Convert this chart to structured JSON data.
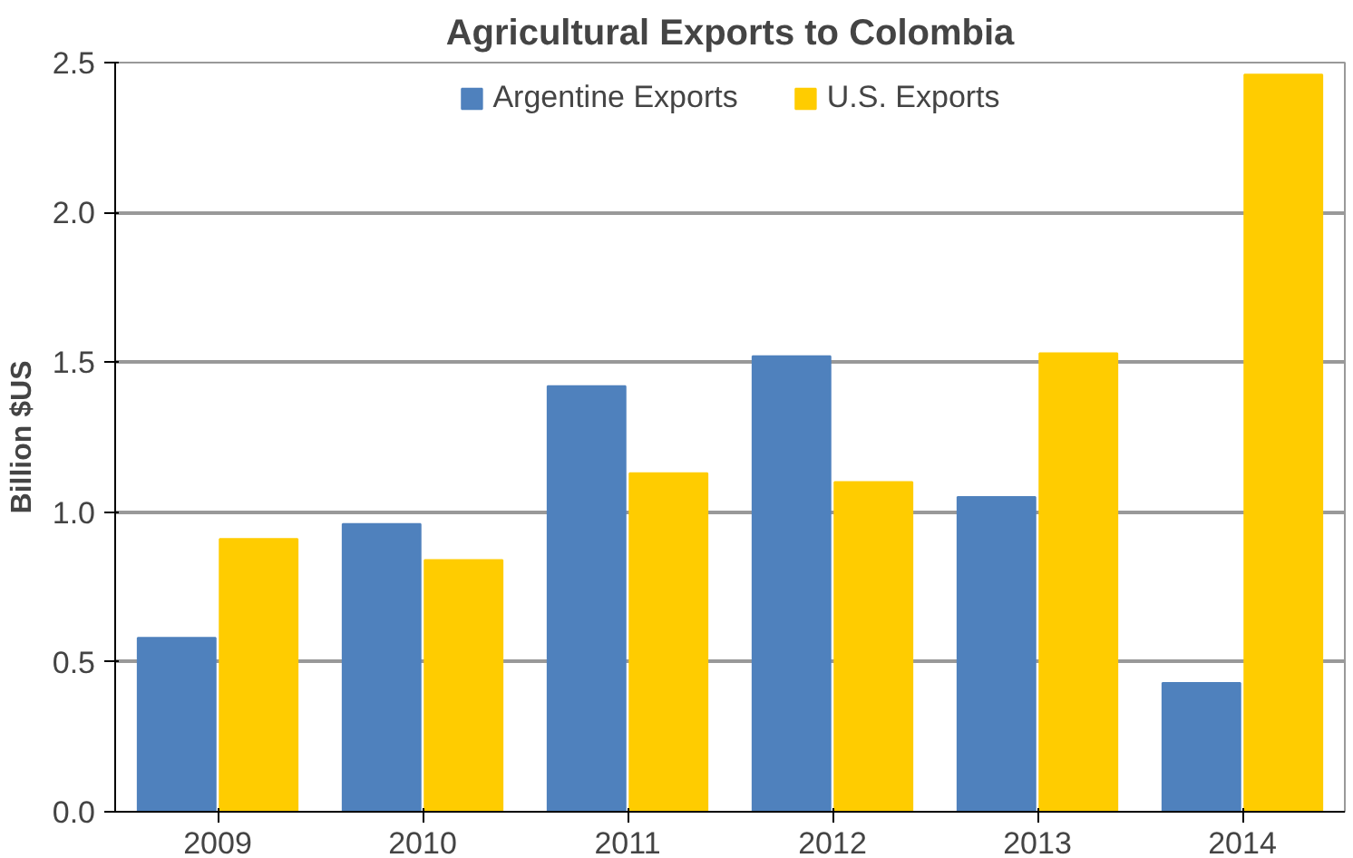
{
  "chart_data": {
    "type": "bar",
    "title": "Agricultural Exports to Colombia",
    "ylabel": "Billion $US",
    "categories": [
      "2009",
      "2010",
      "2011",
      "2012",
      "2013",
      "2014"
    ],
    "series": [
      {
        "name": "Argentine Exports",
        "color": "#4f81bd",
        "values": [
          0.58,
          0.96,
          1.42,
          1.52,
          1.05,
          0.43
        ]
      },
      {
        "name": "U.S. Exports",
        "color": "#ffcc00",
        "values": [
          0.91,
          0.84,
          1.13,
          1.1,
          1.53,
          2.46
        ]
      }
    ],
    "ylim": [
      0,
      2.5
    ],
    "yticks": [
      {
        "value": 0,
        "label": "0.0"
      },
      {
        "value": 0.5,
        "label": "0.5"
      },
      {
        "value": 1,
        "label": "1.0"
      },
      {
        "value": 1.5,
        "label": "1.5"
      },
      {
        "value": 2,
        "label": "2.0"
      },
      {
        "value": 2.5,
        "label": "2.5"
      }
    ],
    "grid": "y",
    "legend": "top"
  }
}
